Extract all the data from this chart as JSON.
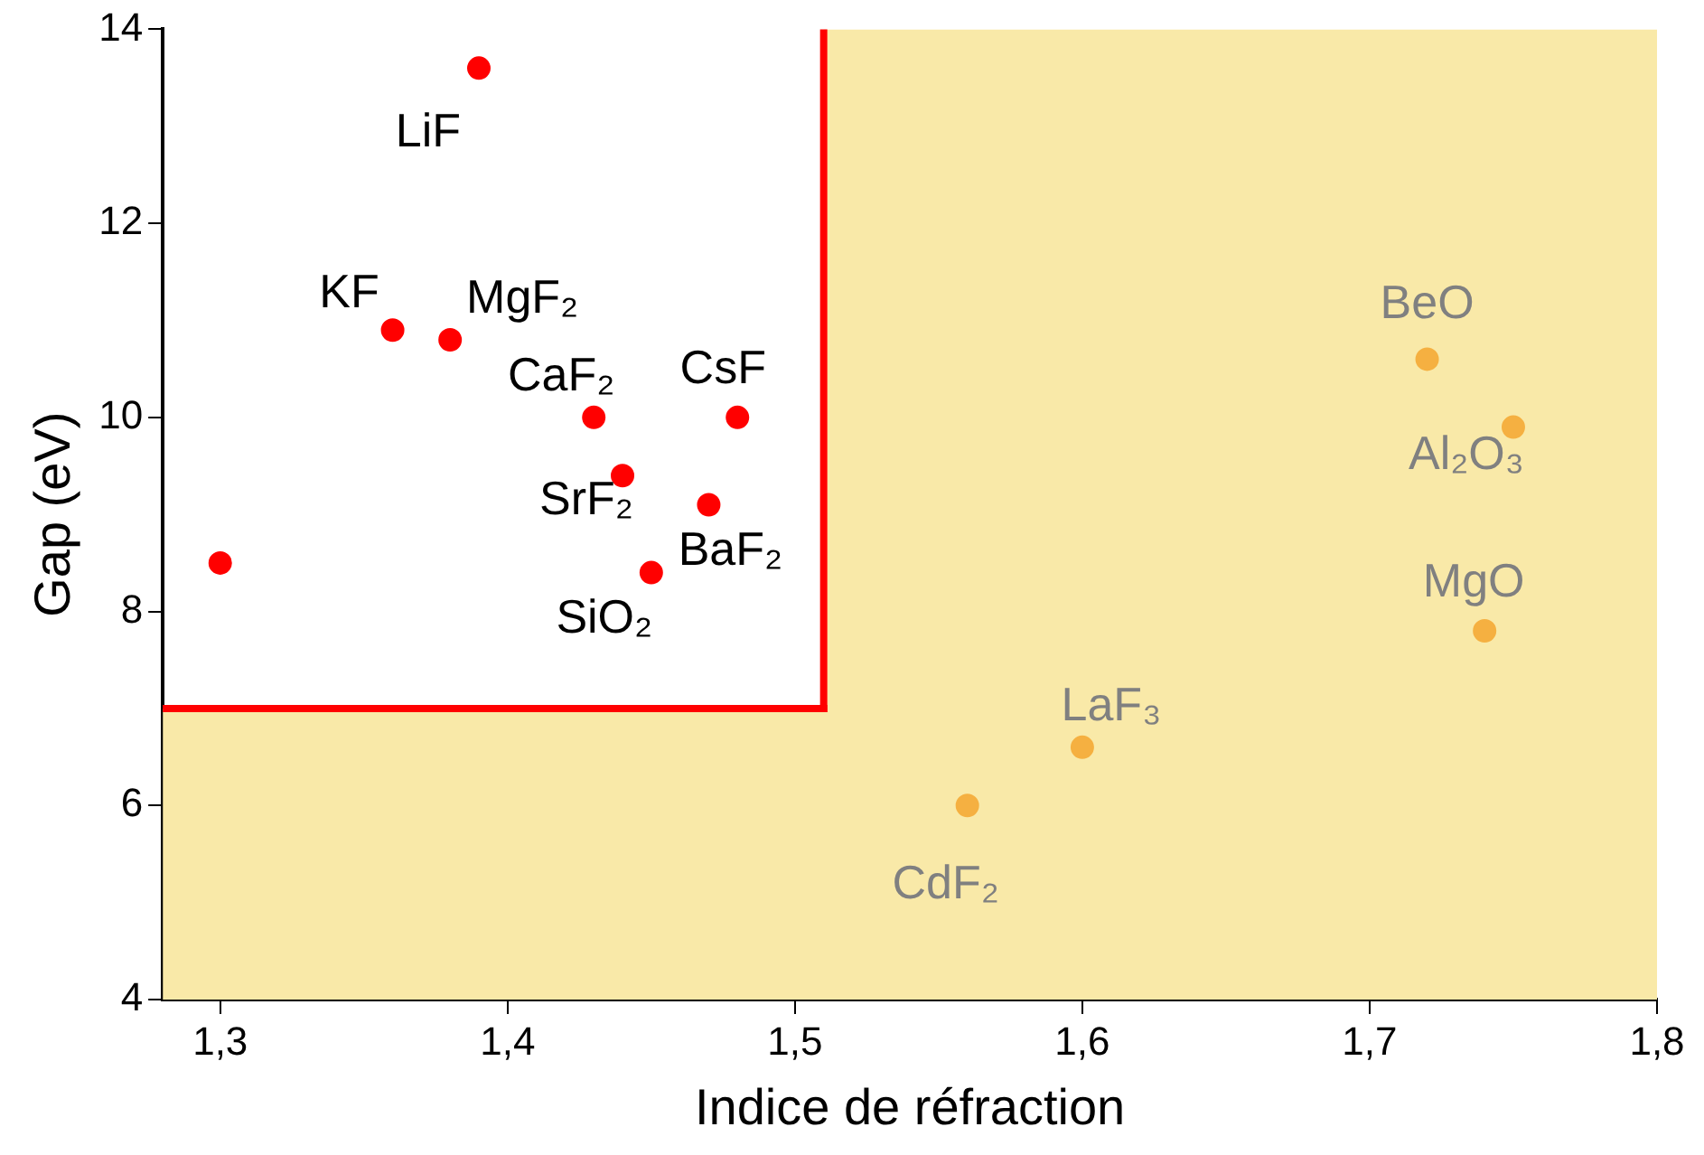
{
  "chart_data": {
    "type": "scatter",
    "xlabel": "Indice de réfraction",
    "ylabel": "Gap (eV)",
    "series": [
      {
        "color": "#ff0000",
        "x": [
          1.39,
          1.36,
          1.38,
          1.43,
          1.48,
          1.44,
          1.47,
          1.45,
          1.3
        ],
        "values": [
          13.6,
          10.9,
          10.8,
          10,
          10,
          9.4,
          9.1,
          8.4,
          8.5
        ]
      },
      {
        "color": "#f5b041",
        "x": [
          1.72,
          1.75,
          1.74,
          1.6,
          1.56
        ],
        "values": [
          10.6,
          9.9,
          7.8,
          6.6,
          6.0
        ]
      }
    ],
    "annotations": [
      {
        "text": "LiF",
        "x": 1.39,
        "y": 13.6
      },
      {
        "text": "KF",
        "x": 1.36,
        "y": 10.9
      },
      {
        "text": "MgF₂",
        "x": 1.38,
        "y": 10.8
      },
      {
        "text": "CaF₂",
        "x": 1.43,
        "y": 10
      },
      {
        "text": "CsF",
        "x": 1.48,
        "y": 10
      },
      {
        "text": "SrF₂",
        "x": 1.44,
        "y": 9.4
      },
      {
        "text": "BaF₂",
        "x": 1.47,
        "y": 9.1
      },
      {
        "text": "SiO₂",
        "x": 1.45,
        "y": 8.4
      },
      {
        "text": "BeO",
        "x": 1.72,
        "y": 10.6
      },
      {
        "text": "Al₂O₃",
        "x": 1.75,
        "y": 9.9
      },
      {
        "text": "MgO",
        "x": 1.74,
        "y": 7.8
      },
      {
        "text": "LaF₃",
        "x": 1.6,
        "y": 6.6
      },
      {
        "text": "CdF₂",
        "x": 1.56,
        "y": 6.0
      }
    ],
    "bands": [
      {
        "axis": "x",
        "from": 1.51,
        "to": 1.8,
        "color": "#f9e9a8"
      },
      {
        "axis": "y",
        "from": 4,
        "to": 7,
        "color": "#f9e9a8"
      }
    ],
    "ref_lines": [
      {
        "axis": "x",
        "value": 1.51,
        "color": "#ff0000"
      },
      {
        "axis": "y",
        "value": 7,
        "color": "#ff0000"
      }
    ],
    "xlim": [
      1.28,
      1.8
    ],
    "xticks": [
      {
        "value": 1.3,
        "label": "1,3"
      },
      {
        "value": 1.4,
        "label": "1,4"
      },
      {
        "value": 1.5,
        "label": "1,5"
      },
      {
        "value": 1.6,
        "label": "1,6"
      },
      {
        "value": 1.7,
        "label": "1,7"
      },
      {
        "value": 1.8,
        "label": "1,8"
      }
    ],
    "ylim": [
      4,
      14
    ],
    "yticks": [
      4,
      6,
      8,
      10,
      12,
      14
    ],
    "grid": false,
    "legend": false,
    "marker": "circle"
  }
}
